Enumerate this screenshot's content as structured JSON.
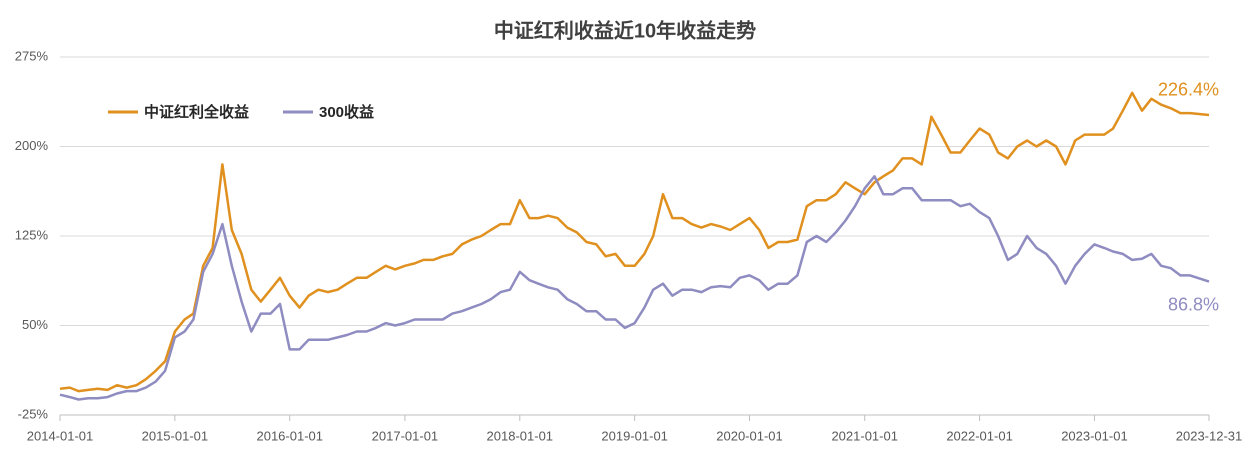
{
  "chart_data": {
    "type": "line",
    "title": "中证红利收益近10年收益走势",
    "x": [
      "2014-01-01",
      "2014-02-01",
      "2014-03-01",
      "2014-04-01",
      "2014-05-01",
      "2014-06-01",
      "2014-07-01",
      "2014-08-01",
      "2014-09-01",
      "2014-10-01",
      "2014-11-01",
      "2014-12-01",
      "2015-01-01",
      "2015-02-01",
      "2015-03-01",
      "2015-04-01",
      "2015-05-01",
      "2015-06-01",
      "2015-07-01",
      "2015-08-01",
      "2015-09-01",
      "2015-10-01",
      "2015-11-01",
      "2015-12-01",
      "2016-01-01",
      "2016-02-01",
      "2016-03-01",
      "2016-04-01",
      "2016-05-01",
      "2016-06-01",
      "2016-07-01",
      "2016-08-01",
      "2016-09-01",
      "2016-10-01",
      "2016-11-01",
      "2016-12-01",
      "2017-01-01",
      "2017-02-01",
      "2017-03-01",
      "2017-04-01",
      "2017-05-01",
      "2017-06-01",
      "2017-07-01",
      "2017-08-01",
      "2017-09-01",
      "2017-10-01",
      "2017-11-01",
      "2017-12-01",
      "2018-01-01",
      "2018-02-01",
      "2018-03-01",
      "2018-04-01",
      "2018-05-01",
      "2018-06-01",
      "2018-07-01",
      "2018-08-01",
      "2018-09-01",
      "2018-10-01",
      "2018-11-01",
      "2018-12-01",
      "2019-01-01",
      "2019-02-01",
      "2019-03-01",
      "2019-04-01",
      "2019-05-01",
      "2019-06-01",
      "2019-07-01",
      "2019-08-01",
      "2019-09-01",
      "2019-10-01",
      "2019-11-01",
      "2019-12-01",
      "2020-01-01",
      "2020-02-01",
      "2020-03-01",
      "2020-04-01",
      "2020-05-01",
      "2020-06-01",
      "2020-07-01",
      "2020-08-01",
      "2020-09-01",
      "2020-10-01",
      "2020-11-01",
      "2020-12-01",
      "2021-01-01",
      "2021-02-01",
      "2021-03-01",
      "2021-04-01",
      "2021-05-01",
      "2021-06-01",
      "2021-07-01",
      "2021-08-01",
      "2021-09-01",
      "2021-10-01",
      "2021-11-01",
      "2021-12-01",
      "2022-01-01",
      "2022-02-01",
      "2022-03-01",
      "2022-04-01",
      "2022-05-01",
      "2022-06-01",
      "2022-07-01",
      "2022-08-01",
      "2022-09-01",
      "2022-10-01",
      "2022-11-01",
      "2022-12-01",
      "2023-01-01",
      "2023-02-01",
      "2023-03-01",
      "2023-04-01",
      "2023-05-01",
      "2023-06-01",
      "2023-07-01",
      "2023-08-01",
      "2023-09-01",
      "2023-10-01",
      "2023-11-01",
      "2023-12-31"
    ],
    "series": [
      {
        "name": "中证红利全收益",
        "color": "#E0901E",
        "end_label": "226.4%",
        "values": [
          -3,
          -2,
          -5,
          -4,
          -3,
          -4,
          0,
          -2,
          0,
          5,
          12,
          20,
          45,
          55,
          60,
          100,
          115,
          185,
          130,
          110,
          80,
          70,
          80,
          90,
          75,
          65,
          75,
          80,
          78,
          80,
          85,
          90,
          90,
          95,
          100,
          97,
          100,
          102,
          105,
          105,
          108,
          110,
          118,
          122,
          125,
          130,
          135,
          135,
          155,
          140,
          140,
          142,
          140,
          132,
          128,
          120,
          118,
          108,
          110,
          100,
          100,
          110,
          125,
          160,
          140,
          140,
          135,
          132,
          135,
          133,
          130,
          135,
          140,
          130,
          115,
          120,
          120,
          122,
          150,
          155,
          155,
          160,
          170,
          165,
          160,
          170,
          175,
          180,
          190,
          190,
          185,
          225,
          210,
          195,
          195,
          205,
          215,
          210,
          195,
          190,
          200,
          205,
          200,
          205,
          200,
          185,
          205,
          210,
          210,
          210,
          215,
          230,
          245,
          230,
          240,
          235,
          232,
          228,
          228,
          226.4
        ]
      },
      {
        "name": "300收益",
        "color": "#8E8CC0",
        "end_label": "86.8%",
        "values": [
          -8,
          -10,
          -12,
          -11,
          -11,
          -10,
          -7,
          -5,
          -5,
          -2,
          3,
          12,
          40,
          45,
          55,
          95,
          110,
          135,
          100,
          70,
          45,
          60,
          60,
          68,
          30,
          30,
          38,
          38,
          38,
          40,
          42,
          45,
          45,
          48,
          52,
          50,
          52,
          55,
          55,
          55,
          55,
          60,
          62,
          65,
          68,
          72,
          78,
          80,
          95,
          88,
          85,
          82,
          80,
          72,
          68,
          62,
          62,
          55,
          55,
          48,
          52,
          65,
          80,
          85,
          75,
          80,
          80,
          78,
          82,
          83,
          82,
          90,
          92,
          88,
          80,
          85,
          85,
          92,
          120,
          125,
          120,
          128,
          138,
          150,
          165,
          175,
          160,
          160,
          165,
          165,
          155,
          155,
          155,
          155,
          150,
          152,
          145,
          140,
          125,
          105,
          110,
          125,
          115,
          110,
          100,
          85,
          100,
          110,
          118,
          115,
          112,
          110,
          105,
          106,
          110,
          100,
          98,
          92,
          92,
          86.8
        ]
      }
    ],
    "xlim": [
      "2014-01-01",
      "2023-12-31"
    ],
    "xticks": [
      "2014-01-01",
      "2015-01-01",
      "2016-01-01",
      "2017-01-01",
      "2018-01-01",
      "2019-01-01",
      "2020-01-01",
      "2021-01-01",
      "2022-01-01",
      "2023-01-01",
      "2023-12-31"
    ],
    "ylim": [
      -25,
      275
    ],
    "yticks": [
      {
        "value": -25,
        "label": "-25%"
      },
      {
        "value": 50,
        "label": "50%"
      },
      {
        "value": 125,
        "label": "125%"
      },
      {
        "value": 200,
        "label": "200%"
      },
      {
        "value": 275,
        "label": "275%"
      }
    ],
    "grid": true,
    "legend": "upper left"
  }
}
